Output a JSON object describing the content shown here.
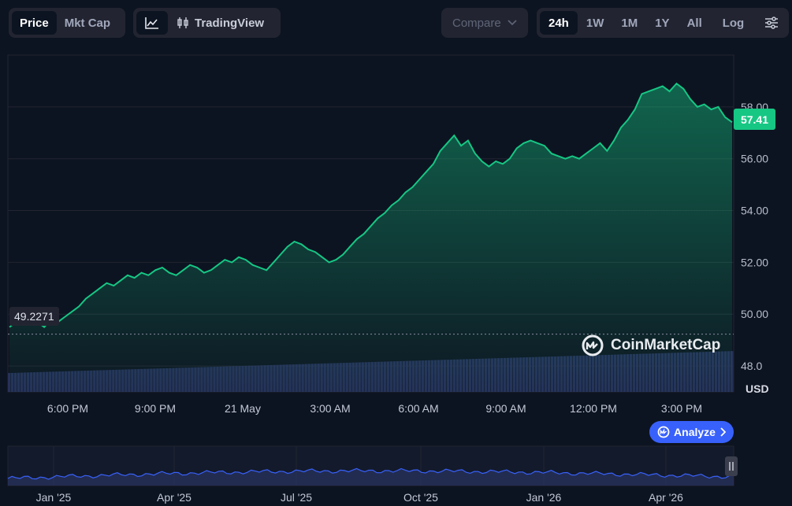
{
  "toolbar": {
    "type_tabs": [
      {
        "label": "Price",
        "active": true
      },
      {
        "label": "Mkt Cap",
        "active": false
      }
    ],
    "tools": {
      "line_icon": "line-chart-icon",
      "candle_icon": "candlestick-icon",
      "tradingview_label": "TradingView"
    },
    "compare": {
      "label": "Compare",
      "icon": "chevron-down-icon"
    },
    "ranges": [
      {
        "label": "24h",
        "active": true
      },
      {
        "label": "1W",
        "active": false
      },
      {
        "label": "1M",
        "active": false
      },
      {
        "label": "1Y",
        "active": false
      },
      {
        "label": "All",
        "active": false
      }
    ],
    "log_label": "Log",
    "settings_icon": "sliders-icon"
  },
  "price": {
    "current": "57.41",
    "start": "49.2271",
    "currency": "USD"
  },
  "watermark": "CoinMarketCap",
  "analyze": {
    "label": "Analyze",
    "icon": "chevron-right-icon"
  },
  "colors": {
    "background": "#0d1421",
    "line": "#16c784",
    "volume": "#2a3563",
    "navigator_line": "#3861fb",
    "analyze": "#3861fb"
  },
  "chart_data": {
    "type": "area",
    "ylim": [
      47,
      60
    ],
    "y_ticks": [
      "58.00",
      "56.00",
      "54.00",
      "52.00",
      "50.00",
      "48.0"
    ],
    "y_tick_values": [
      58,
      56,
      54,
      52,
      50,
      48
    ],
    "x_tick_labels": [
      "6:00 PM",
      "9:00 PM",
      "21 May",
      "3:00 AM",
      "6:00 AM",
      "9:00 AM",
      "12:00 PM",
      "3:00 PM"
    ],
    "grid": true,
    "series": [
      {
        "values": [
          49.5,
          49.7,
          49.8,
          49.6,
          49.7,
          49.5,
          49.8,
          49.7,
          49.9,
          50.1,
          50.3,
          50.6,
          50.8,
          51.0,
          51.2,
          51.1,
          51.3,
          51.5,
          51.4,
          51.6,
          51.5,
          51.7,
          51.8,
          51.6,
          51.5,
          51.7,
          51.9,
          51.8,
          51.6,
          51.7,
          51.9,
          52.1,
          52.0,
          52.2,
          52.1,
          51.9,
          51.8,
          51.7,
          52.0,
          52.3,
          52.6,
          52.8,
          52.7,
          52.5,
          52.4,
          52.2,
          52.0,
          52.1,
          52.3,
          52.6,
          52.9,
          53.1,
          53.4,
          53.7,
          53.9,
          54.2,
          54.4,
          54.7,
          54.9,
          55.2,
          55.5,
          55.8,
          56.3,
          56.6,
          56.9,
          56.5,
          56.7,
          56.2,
          55.9,
          55.7,
          55.9,
          55.8,
          56.0,
          56.4,
          56.6,
          56.7,
          56.6,
          56.5,
          56.2,
          56.1,
          56.0,
          56.1,
          56.0,
          56.2,
          56.4,
          56.6,
          56.3,
          56.7,
          57.2,
          57.5,
          57.9,
          58.5,
          58.6,
          58.7,
          58.8,
          58.6,
          58.9,
          58.7,
          58.3,
          58.0,
          58.1,
          57.9,
          58.0,
          57.6,
          57.41
        ]
      }
    ]
  },
  "navigator": {
    "type": "area",
    "x_tick_labels": [
      "Jan '25",
      "Apr '25",
      "Jul '25",
      "Oct '25",
      "Jan '26",
      "Apr '26"
    ],
    "handle_icon": "pause-handle-icon"
  }
}
